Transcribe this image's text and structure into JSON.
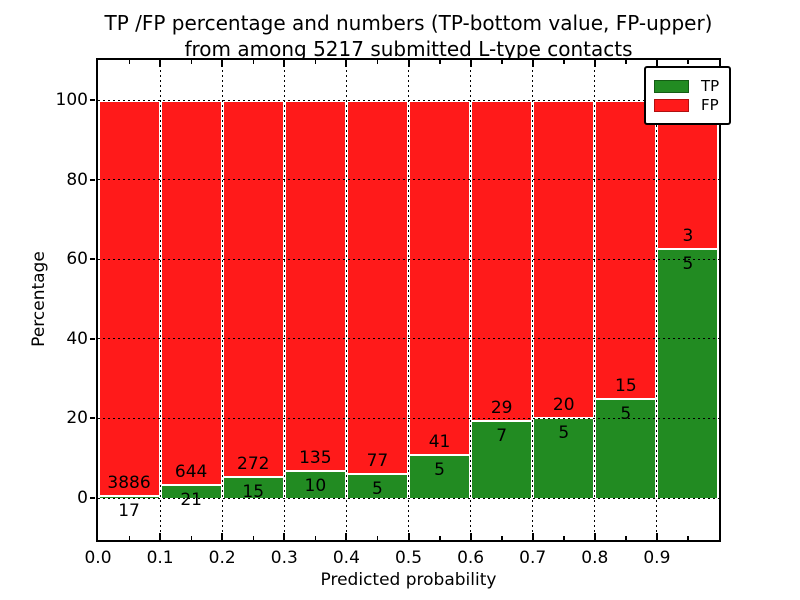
{
  "title": {
    "line1": "TP /FP percentage and numbers (TP-bottom value, FP-upper)",
    "line2": "from among 5217 submitted L-type contacts"
  },
  "chart_data": {
    "type": "bar",
    "stacked": true,
    "normalized_to_percent": true,
    "title": "TP /FP percentage and numbers (TP-bottom value, FP-upper) from among 5217 submitted L-type contacts",
    "xlabel": "Predicted probability",
    "ylabel": "Percentage",
    "bins": [
      0.0,
      0.1,
      0.2,
      0.3,
      0.4,
      0.5,
      0.6,
      0.7,
      0.8,
      0.9,
      1.0
    ],
    "categories": [
      "0.0-0.1",
      "0.1-0.2",
      "0.2-0.3",
      "0.3-0.4",
      "0.4-0.5",
      "0.5-0.6",
      "0.6-0.7",
      "0.7-0.8",
      "0.8-0.9",
      "0.9-1.0"
    ],
    "series": [
      {
        "name": "TP",
        "color": "#228B22",
        "counts": [
          17,
          21,
          15,
          10,
          5,
          5,
          7,
          5,
          5,
          5
        ]
      },
      {
        "name": "FP",
        "color": "#FF1A1A",
        "counts": [
          3886,
          644,
          272,
          135,
          77,
          41,
          29,
          20,
          15,
          3
        ]
      }
    ],
    "total_contacts": 5217,
    "annotation_rule": "FP count printed above the TP/FP boundary, TP count printed below it",
    "xticks": [
      "0.0",
      "0.1",
      "0.2",
      "0.3",
      "0.4",
      "0.5",
      "0.6",
      "0.7",
      "0.8",
      "0.9"
    ],
    "yticks": [
      0,
      20,
      40,
      60,
      80,
      100
    ],
    "ylim": [
      -10.5,
      110
    ],
    "grid": "dotted black, both axes, drawn above bars",
    "bar_edge_color": "#ffffff",
    "legend_position": "upper right"
  },
  "legend": {
    "items": [
      {
        "label": "TP",
        "color": "#228B22",
        "edge": "#145C14"
      },
      {
        "label": "FP",
        "color": "#FF1A1A",
        "edge": "#B01010"
      }
    ]
  }
}
